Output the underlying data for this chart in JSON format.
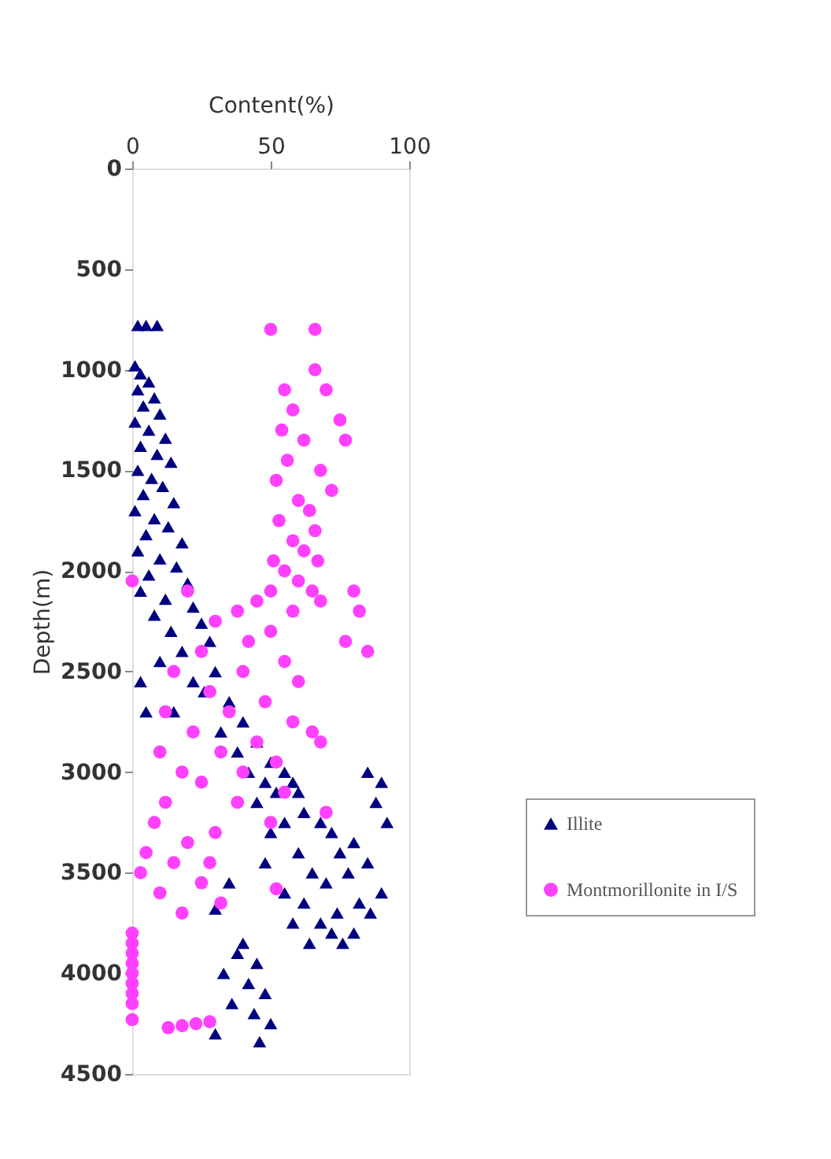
{
  "chart_data": {
    "type": "scatter",
    "xlabel": "Content(%)",
    "ylabel": "Depth(m)",
    "xlim": [
      0,
      100
    ],
    "xticks": [
      0,
      50,
      100
    ],
    "ylim": [
      4500,
      0
    ],
    "yticks": [
      0,
      500,
      1000,
      1500,
      2000,
      2500,
      3000,
      3500,
      4000,
      4500
    ],
    "legend": "right",
    "grid": false,
    "series": [
      {
        "name": "Illite",
        "color": "#000080",
        "marker": "triangle",
        "x": [
          2,
          5,
          9,
          1,
          3,
          6,
          2,
          8,
          4,
          10,
          1,
          6,
          12,
          3,
          9,
          14,
          2,
          7,
          11,
          4,
          15,
          1,
          8,
          13,
          5,
          18,
          2,
          10,
          16,
          6,
          20,
          3,
          12,
          22,
          8,
          25,
          14,
          28,
          18,
          10,
          30,
          22,
          3,
          26,
          35,
          15,
          5,
          40,
          32,
          45,
          38,
          50,
          42,
          55,
          48,
          58,
          52,
          60,
          45,
          62,
          55,
          68,
          50,
          85,
          90,
          88,
          72,
          80,
          92,
          60,
          75,
          85,
          48,
          65,
          78,
          35,
          70,
          90,
          55,
          82,
          62,
          30,
          74,
          86,
          68,
          58,
          80,
          72,
          64,
          76,
          40,
          38,
          45,
          33,
          42,
          48,
          36,
          44,
          50,
          30,
          46
        ],
        "values": [
          780,
          780,
          780,
          980,
          1020,
          1060,
          1100,
          1140,
          1180,
          1220,
          1260,
          1300,
          1340,
          1380,
          1420,
          1460,
          1500,
          1540,
          1580,
          1620,
          1660,
          1700,
          1740,
          1780,
          1820,
          1860,
          1900,
          1940,
          1980,
          2020,
          2060,
          2100,
          2140,
          2180,
          2220,
          2260,
          2300,
          2350,
          2400,
          2450,
          2500,
          2550,
          2550,
          2600,
          2650,
          2700,
          2700,
          2750,
          2800,
          2850,
          2900,
          2950,
          3000,
          3000,
          3050,
          3050,
          3100,
          3100,
          3150,
          3200,
          3250,
          3250,
          3300,
          3000,
          3050,
          3150,
          3300,
          3350,
          3250,
          3400,
          3400,
          3450,
          3450,
          3500,
          3500,
          3550,
          3550,
          3600,
          3600,
          3650,
          3650,
          3680,
          3700,
          3700,
          3750,
          3750,
          3800,
          3800,
          3850,
          3850,
          3850,
          3900,
          3950,
          4000,
          4050,
          4100,
          4150,
          4200,
          4250,
          4300,
          4340
        ]
      },
      {
        "name": "Montmorillonite in I/S",
        "color": "#ff40ff",
        "marker": "circle",
        "x": [
          50,
          66,
          66,
          55,
          70,
          58,
          75,
          54,
          62,
          77,
          56,
          68,
          52,
          72,
          60,
          64,
          53,
          66,
          58,
          62,
          51,
          67,
          55,
          60,
          50,
          65,
          45,
          68,
          38,
          58,
          80,
          0,
          20,
          82,
          30,
          50,
          77,
          42,
          85,
          25,
          55,
          15,
          40,
          60,
          28,
          48,
          12,
          35,
          58,
          22,
          45,
          10,
          32,
          52,
          18,
          40,
          65,
          68,
          25,
          55,
          12,
          38,
          70,
          50,
          8,
          30,
          20,
          5,
          28,
          15,
          3,
          25,
          52,
          10,
          32,
          18,
          0,
          0,
          0,
          0,
          0,
          0,
          0,
          0,
          0,
          13,
          18,
          23,
          28
        ],
        "values": [
          800,
          800,
          1000,
          1100,
          1100,
          1200,
          1250,
          1300,
          1350,
          1350,
          1450,
          1500,
          1550,
          1600,
          1650,
          1700,
          1750,
          1800,
          1850,
          1900,
          1950,
          1950,
          2000,
          2050,
          2100,
          2100,
          2150,
          2150,
          2200,
          2200,
          2100,
          2050,
          2100,
          2200,
          2250,
          2300,
          2350,
          2350,
          2400,
          2400,
          2450,
          2500,
          2500,
          2550,
          2600,
          2650,
          2700,
          2700,
          2750,
          2800,
          2850,
          2900,
          2900,
          2950,
          3000,
          3000,
          2800,
          2850,
          3050,
          3100,
          3150,
          3150,
          3200,
          3250,
          3250,
          3300,
          3350,
          3400,
          3450,
          3450,
          3500,
          3550,
          3580,
          3600,
          3650,
          3700,
          3800,
          3850,
          3900,
          3950,
          4000,
          4050,
          4100,
          4150,
          4230,
          4270,
          4260,
          4250,
          4240
        ]
      }
    ]
  }
}
